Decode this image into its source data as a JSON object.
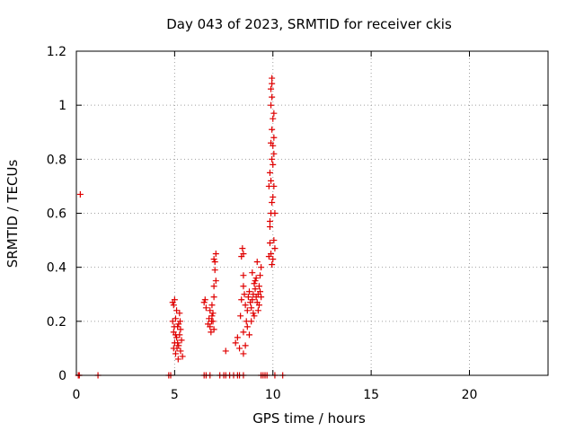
{
  "chart_data": {
    "type": "scatter",
    "title": "Day 043 of 2023, SRMTID for receiver ckis",
    "xlabel": "GPS time / hours",
    "ylabel": "SRMTID / TECUs",
    "xlim": [
      0,
      24
    ],
    "ylim": [
      0,
      1.2
    ],
    "xticks": [
      0,
      5,
      10,
      15,
      20
    ],
    "xtick_labels": [
      "0",
      "5",
      "10",
      "15",
      "20"
    ],
    "yticks": [
      0,
      0.2,
      0.4,
      0.6,
      0.8,
      1,
      1.2
    ],
    "ytick_labels": [
      "0",
      "0.2",
      "0.4",
      "0.6",
      "0.8",
      "1",
      "1.2"
    ],
    "grid": true,
    "marker": "+",
    "series": [
      {
        "name": "SRMTID",
        "color": "#e00000",
        "points": [
          [
            0.2,
            0.67
          ],
          [
            0.1,
            0.0
          ],
          [
            0.15,
            0.0
          ],
          [
            1.1,
            0.0
          ],
          [
            4.7,
            0.0
          ],
          [
            4.8,
            0.0
          ],
          [
            6.5,
            0.0
          ],
          [
            6.6,
            0.0
          ],
          [
            6.8,
            0.0
          ],
          [
            7.3,
            0.0
          ],
          [
            7.5,
            0.0
          ],
          [
            7.6,
            0.0
          ],
          [
            7.8,
            0.0
          ],
          [
            8.0,
            0.0
          ],
          [
            8.2,
            0.0
          ],
          [
            8.3,
            0.0
          ],
          [
            8.5,
            0.0
          ],
          [
            9.4,
            0.0
          ],
          [
            9.5,
            0.0
          ],
          [
            9.6,
            0.0
          ],
          [
            9.7,
            0.0
          ],
          [
            10.1,
            0.0
          ],
          [
            10.5,
            0.0
          ],
          [
            4.9,
            0.27
          ],
          [
            4.95,
            0.26
          ],
          [
            5.0,
            0.28
          ],
          [
            4.9,
            0.2
          ],
          [
            4.95,
            0.16
          ],
          [
            5.0,
            0.12
          ],
          [
            4.95,
            0.1
          ],
          [
            5.05,
            0.08
          ],
          [
            5.1,
            0.14
          ],
          [
            5.15,
            0.18
          ],
          [
            5.2,
            0.11
          ],
          [
            5.25,
            0.15
          ],
          [
            5.3,
            0.09
          ],
          [
            5.05,
            0.21
          ],
          [
            5.1,
            0.24
          ],
          [
            5.2,
            0.19
          ],
          [
            5.35,
            0.13
          ],
          [
            5.3,
            0.17
          ],
          [
            5.4,
            0.07
          ],
          [
            5.25,
            0.23
          ],
          [
            5.15,
            0.12
          ],
          [
            5.05,
            0.15
          ],
          [
            4.98,
            0.18
          ],
          [
            5.12,
            0.1
          ],
          [
            5.28,
            0.2
          ],
          [
            5.18,
            0.06
          ],
          [
            6.5,
            0.27
          ],
          [
            6.55,
            0.28
          ],
          [
            6.6,
            0.25
          ],
          [
            6.75,
            0.21
          ],
          [
            6.8,
            0.18
          ],
          [
            6.85,
            0.16
          ],
          [
            6.9,
            0.22
          ],
          [
            6.95,
            0.2
          ],
          [
            7.0,
            0.17
          ],
          [
            6.7,
            0.19
          ],
          [
            6.8,
            0.24
          ],
          [
            6.9,
            0.26
          ],
          [
            7.0,
            0.33
          ],
          [
            7.0,
            0.43
          ],
          [
            7.05,
            0.42
          ],
          [
            7.1,
            0.45
          ],
          [
            7.05,
            0.39
          ],
          [
            7.0,
            0.29
          ],
          [
            7.1,
            0.35
          ],
          [
            6.95,
            0.23
          ],
          [
            6.88,
            0.2
          ],
          [
            7.6,
            0.09
          ],
          [
            8.1,
            0.12
          ],
          [
            8.2,
            0.14
          ],
          [
            8.3,
            0.1
          ],
          [
            8.35,
            0.22
          ],
          [
            8.4,
            0.28
          ],
          [
            8.4,
            0.44
          ],
          [
            8.45,
            0.47
          ],
          [
            8.5,
            0.45
          ],
          [
            8.5,
            0.37
          ],
          [
            8.5,
            0.33
          ],
          [
            8.55,
            0.3
          ],
          [
            8.6,
            0.26
          ],
          [
            8.5,
            0.16
          ],
          [
            8.5,
            0.08
          ],
          [
            8.6,
            0.11
          ],
          [
            8.65,
            0.2
          ],
          [
            8.7,
            0.24
          ],
          [
            8.75,
            0.29
          ],
          [
            8.8,
            0.31
          ],
          [
            8.85,
            0.27
          ],
          [
            8.9,
            0.25
          ],
          [
            8.95,
            0.28
          ],
          [
            9.0,
            0.3
          ],
          [
            9.05,
            0.34
          ],
          [
            9.1,
            0.32
          ],
          [
            9.15,
            0.29
          ],
          [
            9.2,
            0.27
          ],
          [
            9.25,
            0.3
          ],
          [
            9.3,
            0.33
          ],
          [
            9.35,
            0.37
          ],
          [
            9.4,
            0.4
          ],
          [
            9.2,
            0.42
          ],
          [
            9.0,
            0.23
          ],
          [
            8.9,
            0.2
          ],
          [
            8.8,
            0.15
          ],
          [
            9.1,
            0.35
          ],
          [
            9.3,
            0.26
          ],
          [
            9.4,
            0.29
          ],
          [
            8.95,
            0.38
          ],
          [
            9.05,
            0.22
          ],
          [
            9.15,
            0.36
          ],
          [
            8.7,
            0.18
          ],
          [
            9.25,
            0.24
          ],
          [
            9.35,
            0.31
          ],
          [
            9.8,
            0.44
          ],
          [
            9.85,
            0.49
          ],
          [
            9.9,
            0.45
          ],
          [
            9.95,
            0.41
          ],
          [
            10.0,
            0.43
          ],
          [
            10.05,
            0.5
          ],
          [
            10.1,
            0.47
          ],
          [
            9.85,
            0.55
          ],
          [
            9.9,
            0.6
          ],
          [
            9.95,
            0.64
          ],
          [
            10.0,
            0.66
          ],
          [
            10.05,
            0.7
          ],
          [
            9.8,
            0.7
          ],
          [
            9.85,
            0.75
          ],
          [
            9.9,
            0.72
          ],
          [
            9.95,
            0.8
          ],
          [
            10.0,
            0.78
          ],
          [
            10.05,
            0.82
          ],
          [
            9.9,
            0.86
          ],
          [
            10.0,
            0.85
          ],
          [
            10.05,
            0.88
          ],
          [
            9.95,
            0.91
          ],
          [
            10.0,
            0.95
          ],
          [
            10.05,
            0.97
          ],
          [
            9.9,
            1.0
          ],
          [
            9.95,
            1.03
          ],
          [
            9.9,
            1.06
          ],
          [
            9.95,
            1.08
          ],
          [
            9.95,
            1.1
          ],
          [
            9.85,
            0.57
          ],
          [
            10.1,
            0.6
          ]
        ]
      }
    ]
  }
}
